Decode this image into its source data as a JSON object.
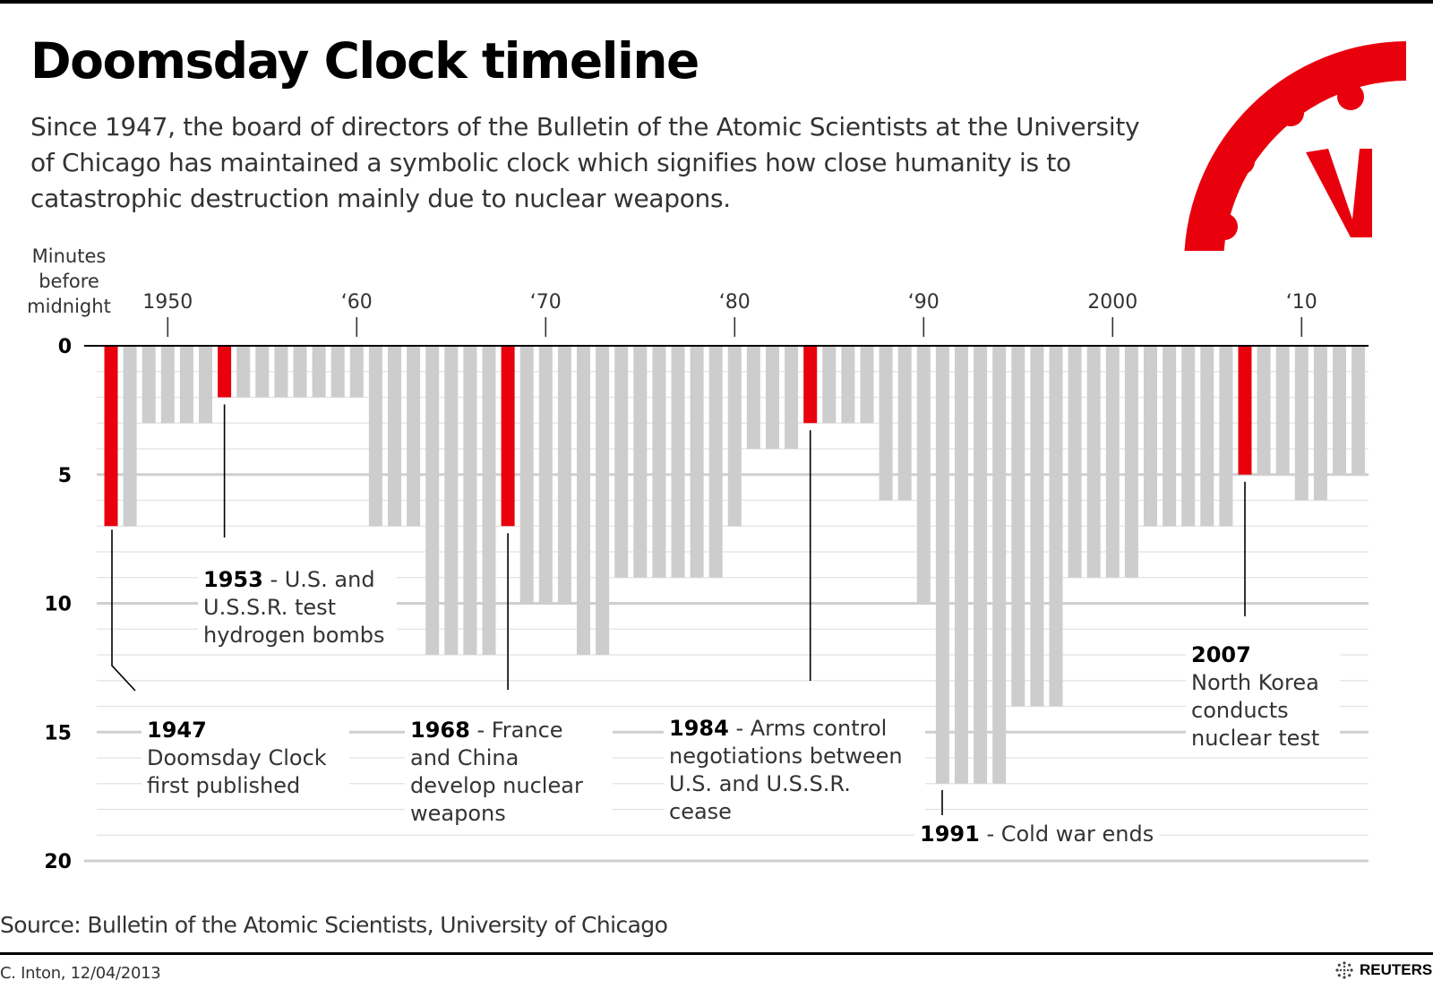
{
  "header": {
    "title": "Doomsday Clock timeline",
    "subtitle": "Since 1947, the board of directors of the Bulletin of the Atomic Scientists at the University of Chicago has maintained a symbolic clock which signifies how close humanity is to catastrophic destruction mainly due to nuclear weapons."
  },
  "colors": {
    "highlight": "#e8000d",
    "bar": "#cdcdcd",
    "grid": "#d9d9d9",
    "axis": "#000000"
  },
  "chart_data": {
    "type": "bar",
    "ylabel": "Minutes before midnight",
    "ylim": [
      0,
      20
    ],
    "y_inverted": true,
    "y_ticks": [
      "0",
      "5",
      "10",
      "15",
      "20"
    ],
    "x_tick_labels": [
      {
        "year": 1950,
        "label": "1950"
      },
      {
        "year": 1960,
        "label": "‘60"
      },
      {
        "year": 1970,
        "label": "‘70"
      },
      {
        "year": 1980,
        "label": "‘80"
      },
      {
        "year": 1990,
        "label": "‘90"
      },
      {
        "year": 2000,
        "label": "2000"
      },
      {
        "year": 2010,
        "label": "‘10"
      }
    ],
    "x": [
      1947,
      1948,
      1949,
      1950,
      1951,
      1952,
      1953,
      1954,
      1955,
      1956,
      1957,
      1958,
      1959,
      1960,
      1961,
      1962,
      1963,
      1964,
      1965,
      1966,
      1967,
      1968,
      1969,
      1970,
      1971,
      1972,
      1973,
      1974,
      1975,
      1976,
      1977,
      1978,
      1979,
      1980,
      1981,
      1982,
      1983,
      1984,
      1985,
      1986,
      1987,
      1988,
      1989,
      1990,
      1991,
      1992,
      1993,
      1994,
      1995,
      1996,
      1997,
      1998,
      1999,
      2000,
      2001,
      2002,
      2003,
      2004,
      2005,
      2006,
      2007,
      2008,
      2009,
      2010,
      2011,
      2012,
      2013
    ],
    "values": [
      7,
      7,
      3,
      3,
      3,
      3,
      2,
      2,
      2,
      2,
      2,
      2,
      2,
      2,
      7,
      7,
      7,
      12,
      12,
      12,
      12,
      7,
      10,
      10,
      10,
      12,
      12,
      9,
      9,
      9,
      9,
      9,
      9,
      7,
      4,
      4,
      4,
      3,
      3,
      3,
      3,
      6,
      6,
      10,
      17,
      17,
      17,
      17,
      14,
      14,
      14,
      9,
      9,
      9,
      9,
      7,
      7,
      7,
      7,
      7,
      5,
      5,
      5,
      6,
      6,
      5,
      5
    ],
    "highlight_years": [
      1947,
      1953,
      1968,
      1984,
      2007
    ],
    "annotations": [
      {
        "year": "1947",
        "text": "Doomsday Clock first published"
      },
      {
        "year": "1953",
        "text": "- U.S. and U.S.S.R. test hydrogen bombs"
      },
      {
        "year": "1968",
        "text": "- France and China develop nuclear weapons"
      },
      {
        "year": "1984",
        "text": "- Arms control negotiations between U.S. and U.S.S.R. cease"
      },
      {
        "year": "1991",
        "text": "- Cold war ends"
      },
      {
        "year": "2007",
        "text": "North Korea conducts nuclear test"
      }
    ]
  },
  "footer": {
    "source": "Source: Bulletin of the Atomic Scientists, University of Chicago",
    "credit": "C. Inton, 12/04/2013",
    "brand": "REUTERS"
  },
  "icons": {
    "logo": "doomsday-clock-icon",
    "brand": "reuters-logo-icon"
  }
}
